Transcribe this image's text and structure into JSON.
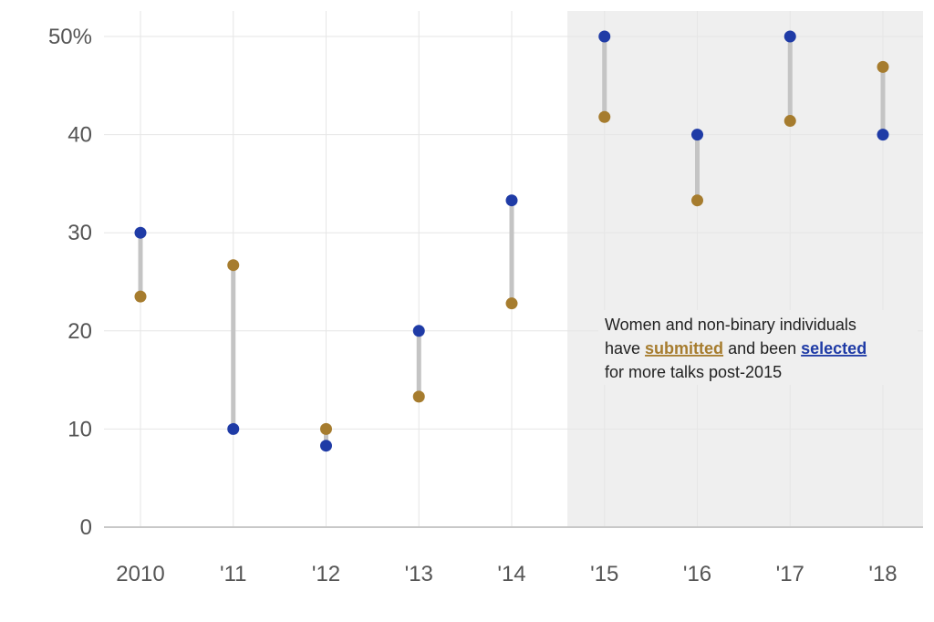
{
  "chart_data": {
    "type": "dumbbell",
    "categories": [
      "2010",
      "'11",
      "'12",
      "'13",
      "'14",
      "'15",
      "'16",
      "'17",
      "'18"
    ],
    "series": [
      {
        "name": "submitted",
        "color": "#a67c2e",
        "values": [
          23.5,
          26.7,
          10.0,
          13.3,
          22.8,
          41.8,
          33.3,
          41.4,
          46.9
        ]
      },
      {
        "name": "selected",
        "color": "#1f3ba6",
        "values": [
          30.0,
          10.0,
          8.3,
          20.0,
          33.3,
          50.0,
          40.0,
          50.0,
          40.0
        ]
      }
    ],
    "ylim": [
      0,
      50
    ],
    "yticks": [
      0,
      10,
      20,
      30,
      40,
      50
    ],
    "ytick_labels": [
      "0",
      "10",
      "20",
      "30",
      "40",
      "50%"
    ],
    "grid": true,
    "highlight_region": {
      "from_category": "'15",
      "to_category": "'18",
      "color": "#efefef"
    },
    "connector_color": "#c4c4c4",
    "annotation": {
      "line1": "Women and non-binary individuals",
      "line2_pre": "have ",
      "line2_submitted": "submitted",
      "line2_mid": " and been ",
      "line2_selected": "selected",
      "line3": "for more talks post-2015"
    }
  }
}
